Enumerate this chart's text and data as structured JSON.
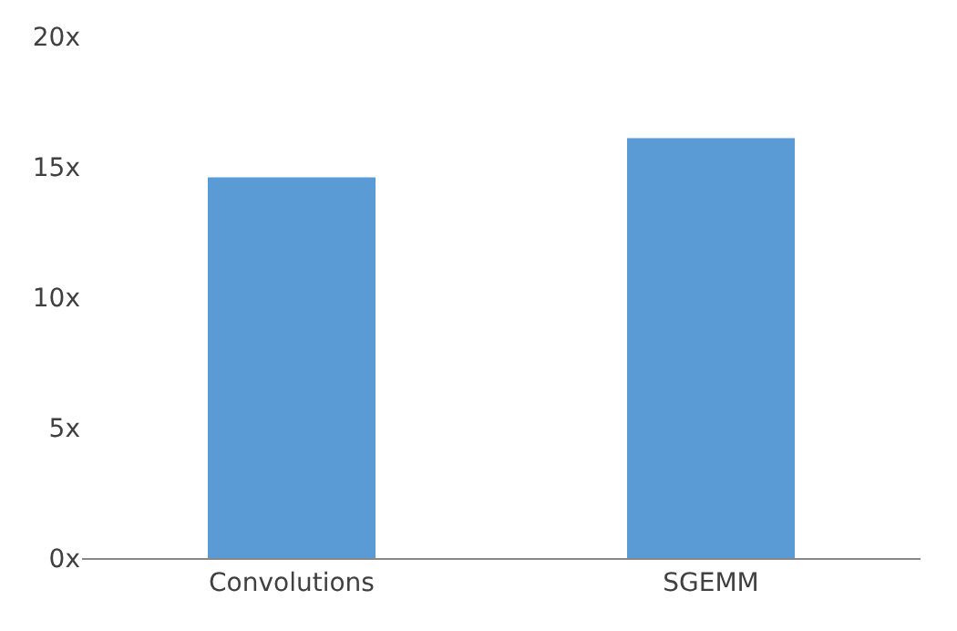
{
  "chart_data": {
    "type": "bar",
    "categories": [
      "Convolutions",
      "SGEMM"
    ],
    "values": [
      14.6,
      16.1
    ],
    "color": "#5b9bd5",
    "ylim": [
      0,
      20
    ],
    "yticks": [
      {
        "value": 0,
        "label": "0x"
      },
      {
        "value": 5,
        "label": "5x"
      },
      {
        "value": 10,
        "label": "10x"
      },
      {
        "value": 15,
        "label": "15x"
      },
      {
        "value": 20,
        "label": "20x"
      }
    ]
  }
}
